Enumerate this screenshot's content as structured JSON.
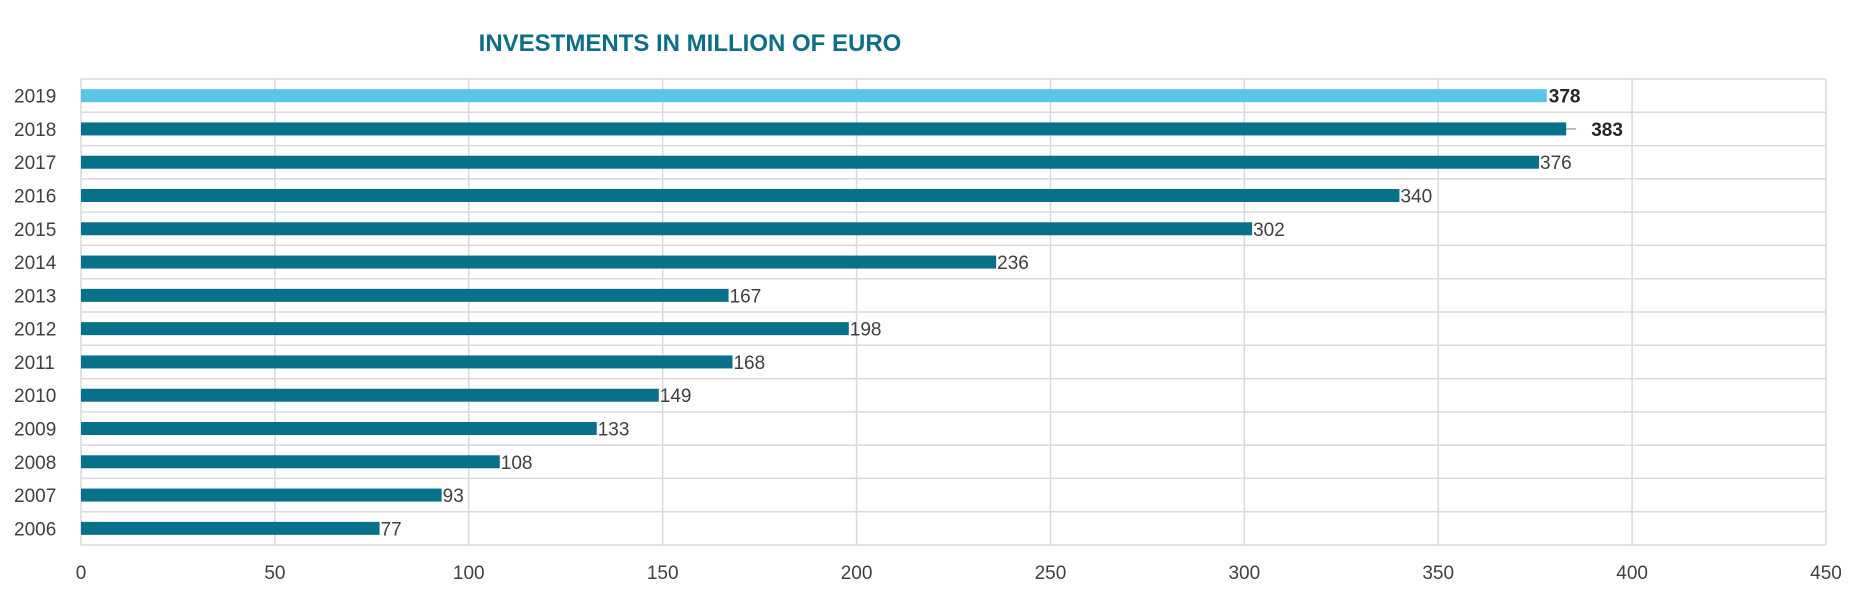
{
  "colors": {
    "title": "#0e6e86",
    "bar": "#07708a",
    "highlight": "#5bc5e8",
    "grid": "#d9d9d9"
  },
  "chart_data": {
    "type": "bar",
    "orientation": "horizontal",
    "title": "INVESTMENTS IN MILLION OF EURO",
    "categories": [
      "2019",
      "2018",
      "2017",
      "2016",
      "2015",
      "2014",
      "2013",
      "2012",
      "2011",
      "2010",
      "2009",
      "2008",
      "2007",
      "2006"
    ],
    "values": [
      378,
      383,
      376,
      340,
      302,
      236,
      167,
      198,
      168,
      149,
      133,
      108,
      93,
      77
    ],
    "labels": [
      "378",
      "383",
      "376",
      "340",
      "302",
      "236",
      "167",
      "198",
      "168",
      "149",
      "133",
      "108",
      "93",
      "77"
    ],
    "highlight": [
      "2019"
    ],
    "bold_labels": [
      "2019",
      "2018"
    ],
    "xlim": [
      0,
      450
    ],
    "xticks": [
      0,
      50,
      100,
      150,
      200,
      250,
      300,
      350,
      400,
      450
    ],
    "xlabel": "",
    "ylabel": "",
    "grid": true,
    "legend": "none"
  }
}
